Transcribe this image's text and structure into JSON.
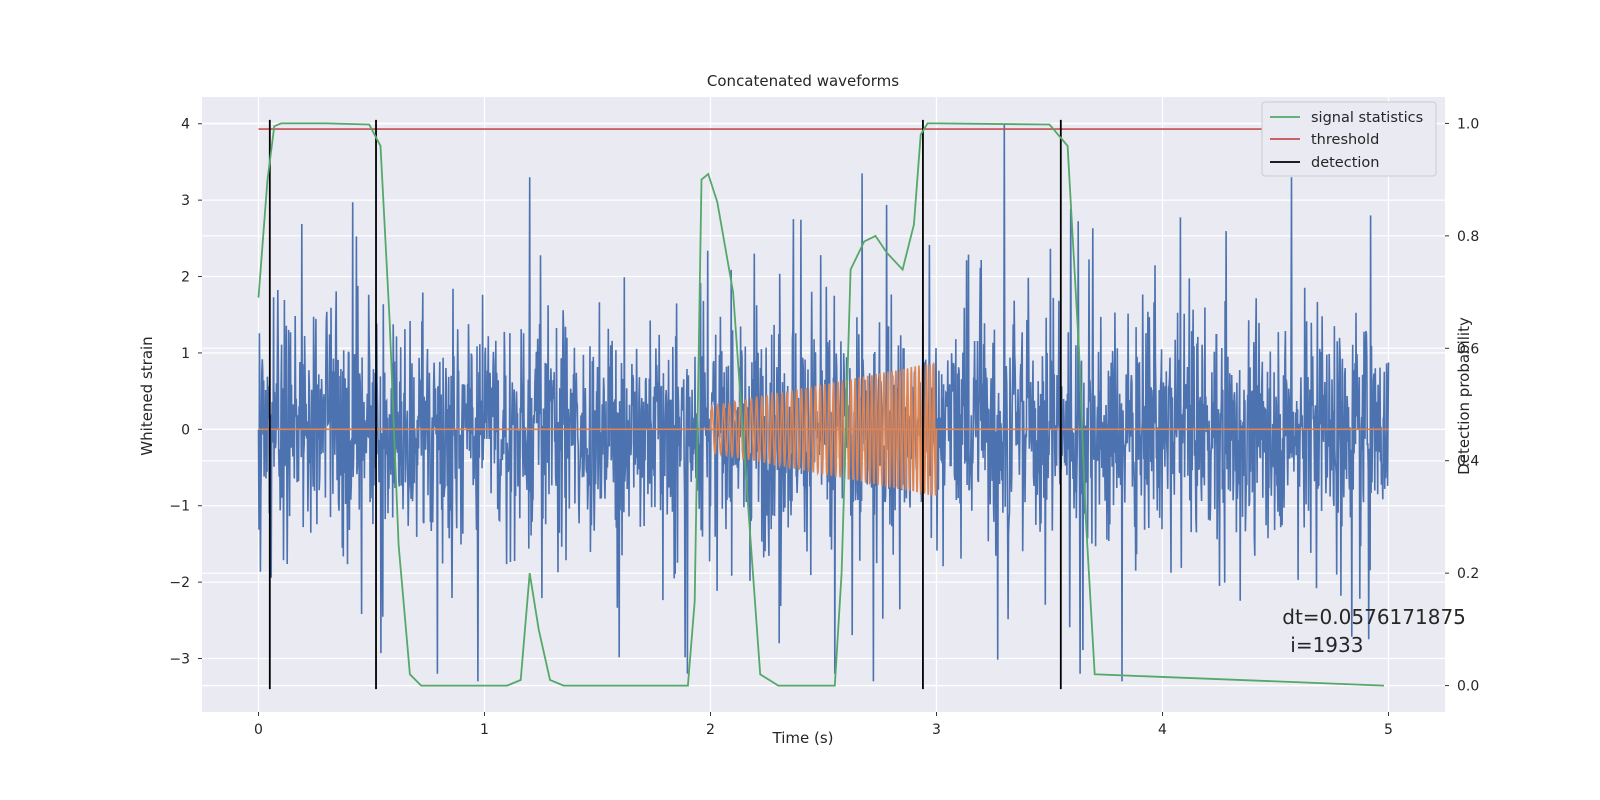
{
  "chart_data": {
    "type": "line",
    "title": "Concatenated waveforms",
    "xlabel": "Time (s)",
    "ylabel": "Whitened strain",
    "y2label": "Detection probability",
    "xlim": [
      -0.25,
      5.25
    ],
    "ylim": [
      -3.7,
      4.35
    ],
    "y2lim": [
      -0.047,
      1.047
    ],
    "xticks": [
      0,
      1,
      2,
      3,
      4,
      5
    ],
    "yticks": [
      -3,
      -2,
      -1,
      0,
      1,
      2,
      3,
      4
    ],
    "y2ticks": [
      0.0,
      0.2,
      0.4,
      0.6,
      0.8,
      1.0
    ],
    "xtick_labels": [
      "0",
      "1",
      "2",
      "3",
      "4",
      "5"
    ],
    "ytick_labels": [
      "−3",
      "−2",
      "−1",
      "0",
      "1",
      "2",
      "3",
      "4"
    ],
    "y2tick_labels": [
      "0.0",
      "0.2",
      "0.4",
      "0.6",
      "0.8",
      "1.0"
    ],
    "grid": true,
    "legend_position": "top-right",
    "legend": [
      "signal statistics",
      "threshold",
      "detection"
    ],
    "colors": {
      "strain": "#4c72b0",
      "injection": "#dd8452",
      "signal_statistics": "#55a868",
      "threshold": "#c44e52",
      "detection": "#000000",
      "axes_bg": "#eaeaf2",
      "grid": "#ffffff"
    },
    "series": [
      {
        "name": "",
        "kind": "whitened strain noise",
        "x_range": [
          0,
          5
        ],
        "typical_amplitude": 1.0,
        "peak_values": [
          {
            "x": 1.2,
            "y": 3.3
          },
          {
            "x": 2.67,
            "y": 3.35
          },
          {
            "x": 3.3,
            "y": 4.0
          },
          {
            "x": 4.57,
            "y": 3.3
          },
          {
            "x": 4.92,
            "y": 2.8
          },
          {
            "x": 0.97,
            "y": -3.3
          },
          {
            "x": 2.55,
            "y": -3.2
          },
          {
            "x": 2.72,
            "y": -3.3
          },
          {
            "x": 3.82,
            "y": -3.3
          }
        ]
      },
      {
        "name": "",
        "kind": "injected chirp",
        "x_range": [
          2.0,
          3.0
        ],
        "start_amplitude": 0.3,
        "end_amplitude": 0.88
      },
      {
        "name": "signal statistics",
        "axis": "right",
        "x": [
          0.0,
          0.04,
          0.07,
          0.1,
          0.3,
          0.49,
          0.54,
          0.58,
          0.62,
          0.67,
          0.72,
          1.1,
          1.16,
          1.2,
          1.24,
          1.29,
          1.35,
          1.9,
          1.93,
          1.96,
          1.99,
          2.03,
          2.1,
          2.17,
          2.22,
          2.3,
          2.55,
          2.58,
          2.62,
          2.68,
          2.73,
          2.78,
          2.85,
          2.9,
          2.93,
          2.96,
          3.0,
          3.5,
          3.58,
          3.63,
          3.66,
          3.7,
          4.98
        ],
        "values": [
          0.69,
          0.9,
          0.995,
          1.0,
          1.0,
          0.998,
          0.96,
          0.65,
          0.25,
          0.02,
          0.0,
          0.0,
          0.01,
          0.2,
          0.1,
          0.01,
          0.0,
          0.0,
          0.15,
          0.9,
          0.91,
          0.86,
          0.7,
          0.3,
          0.02,
          0.0,
          0.0,
          0.2,
          0.74,
          0.79,
          0.8,
          0.77,
          0.74,
          0.82,
          0.98,
          1.0,
          1.0,
          0.998,
          0.96,
          0.6,
          0.3,
          0.02,
          0.0
        ]
      },
      {
        "name": "threshold",
        "axis": "right",
        "x": [
          0,
          5
        ],
        "values": [
          0.99,
          0.99
        ]
      },
      {
        "name": "detection",
        "axis": "left",
        "x_positions": [
          0.05,
          0.52,
          2.94,
          3.55
        ],
        "y_range": [
          -3.4,
          4.05
        ]
      }
    ],
    "annotation": {
      "line1": "dt=0.0576171875",
      "line2": "i=1933",
      "x": 4.53,
      "y": -2.55
    }
  }
}
